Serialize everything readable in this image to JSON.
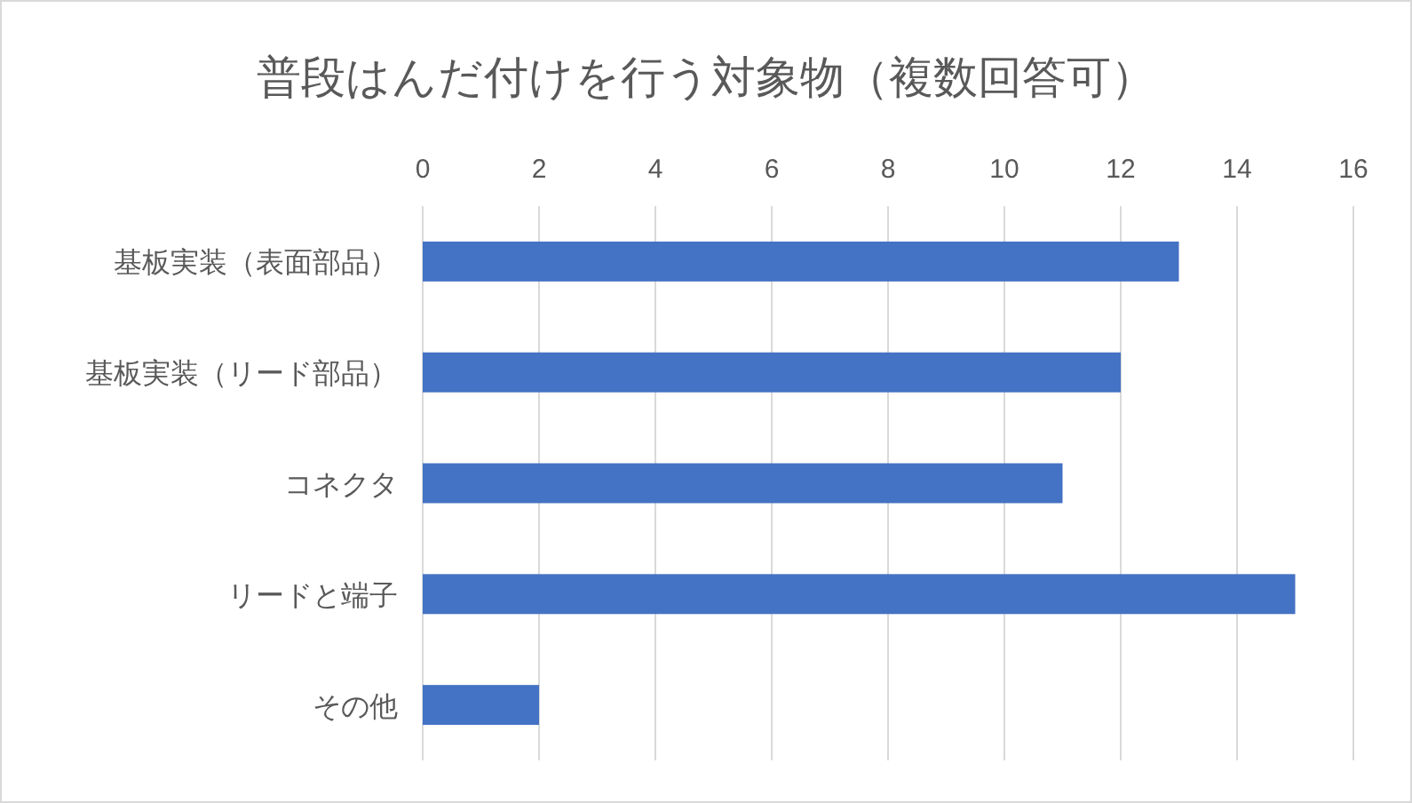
{
  "chart_data": {
    "type": "bar",
    "orientation": "horizontal",
    "title": "普段はんだ付けを行う対象物（複数回答可）",
    "categories": [
      "基板実装（表面部品）",
      "基板実装（リード部品）",
      "コネクタ",
      "リードと端子",
      "その他"
    ],
    "values": [
      13,
      12,
      11,
      15,
      2
    ],
    "color": "#4472c4",
    "xlim": [
      0,
      16
    ],
    "xticks": [
      0,
      2,
      4,
      6,
      8,
      10,
      12,
      14,
      16
    ],
    "grid": "x"
  }
}
